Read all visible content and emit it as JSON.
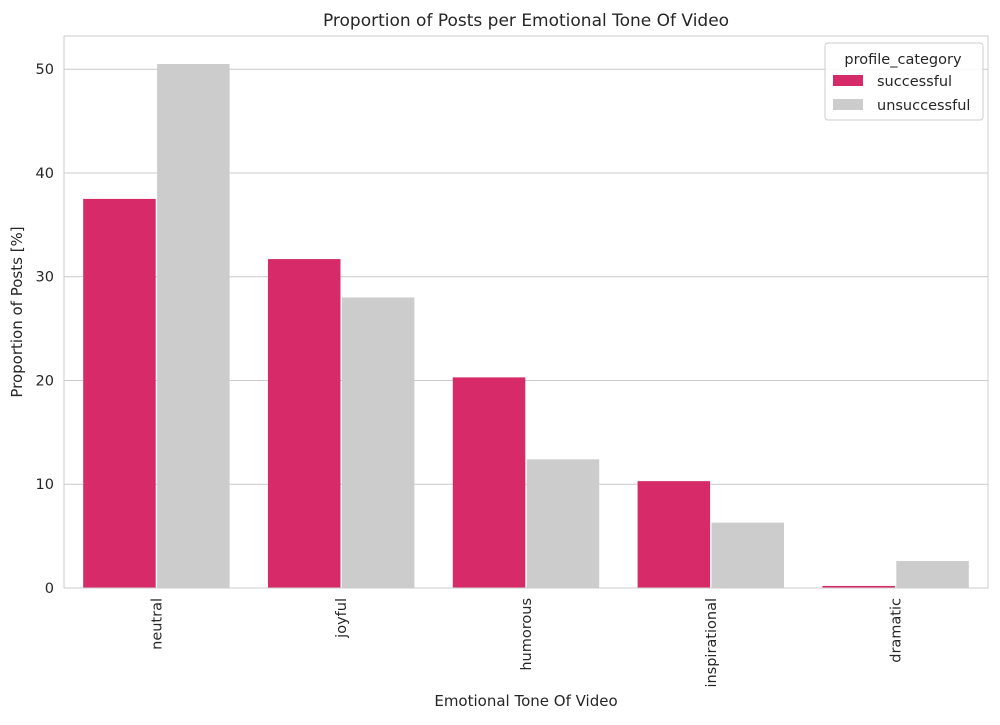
{
  "chart_data": {
    "type": "bar",
    "title": "Proportion of Posts per Emotional Tone Of Video",
    "xlabel": "Emotional Tone Of Video",
    "ylabel": "Proportion of Posts [%]",
    "categories": [
      "neutral",
      "joyful",
      "humorous",
      "inspirational",
      "dramatic"
    ],
    "series": [
      {
        "name": "successful",
        "color": "#d62b68",
        "values": [
          37.5,
          31.7,
          20.3,
          10.3,
          0.2
        ]
      },
      {
        "name": "unsuccessful",
        "color": "#cccccc",
        "values": [
          50.5,
          28.0,
          12.4,
          6.3,
          2.6
        ]
      }
    ],
    "ylim": [
      0,
      53.2
    ],
    "yticks": [
      0,
      10,
      20,
      30,
      40,
      50
    ],
    "grid": "horizontal",
    "legend": {
      "title": "profile_category",
      "placement": "top-right"
    }
  }
}
